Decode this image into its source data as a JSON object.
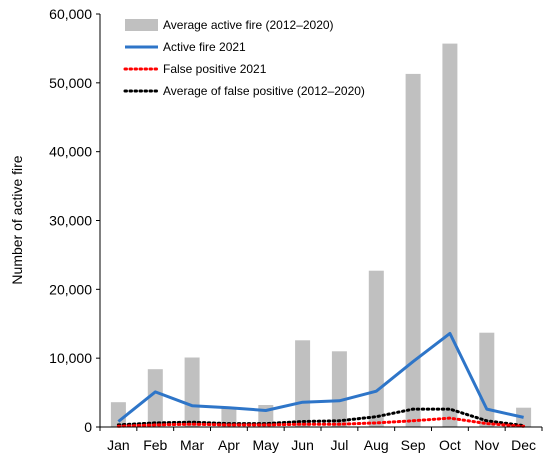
{
  "chart_data": {
    "type": "bar",
    "categories": [
      "Jan",
      "Feb",
      "Mar",
      "Apr",
      "May",
      "Jun",
      "Jul",
      "Aug",
      "Sep",
      "Oct",
      "Nov",
      "Dec"
    ],
    "ylabel": "Number of active fire",
    "xlabel": "",
    "ylim": [
      0,
      60000
    ],
    "yticks": [
      0,
      10000,
      20000,
      30000,
      40000,
      50000,
      60000
    ],
    "ytick_labels": [
      "0",
      "10,000",
      "20,000",
      "30,000",
      "40,000",
      "50,000",
      "60,000"
    ],
    "grid": false,
    "legend_position": "top-left",
    "series": [
      {
        "name": "Average active fire (2012–2020)",
        "type": "bar",
        "color": "#c0c0c0",
        "values": [
          3600,
          8400,
          10100,
          2800,
          3200,
          12600,
          11000,
          22700,
          51300,
          55700,
          13700,
          2800
        ]
      },
      {
        "name": "Active fire 2021",
        "type": "line",
        "style": "solid",
        "color": "#2e75c8",
        "values": [
          800,
          5100,
          3100,
          2800,
          2400,
          3600,
          3800,
          5200,
          9500,
          13600,
          2600,
          1400
        ]
      },
      {
        "name": "False positive 2021",
        "type": "line",
        "style": "dotted",
        "color": "#ff0000",
        "values": [
          100,
          300,
          400,
          300,
          300,
          400,
          400,
          600,
          900,
          1300,
          500,
          100
        ]
      },
      {
        "name": "Average of false positive (2012–2020)",
        "type": "line",
        "style": "dotted",
        "color": "#000000",
        "values": [
          300,
          600,
          700,
          500,
          500,
          800,
          900,
          1500,
          2600,
          2600,
          900,
          200
        ]
      }
    ]
  }
}
